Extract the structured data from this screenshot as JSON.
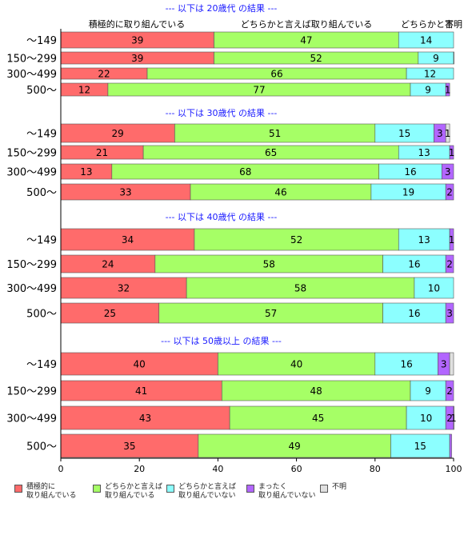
{
  "chart_data": {
    "type": "bar",
    "orientation": "horizontal",
    "stacked": true,
    "xlim": [
      0,
      100
    ],
    "x_ticks": [
      "0",
      "20",
      "40",
      "60",
      "80",
      "100"
    ],
    "colors": [
      "#ff6b6b",
      "#a6ff66",
      "#8cffff",
      "#b266ff",
      "#e0e0e0"
    ],
    "legend": {
      "placement": "bottom",
      "entries": [
        "積極的に\n取り組んでいる",
        "どちらかと言えば\n取り組んでいる",
        "どちらかと言えば\n取り組んでいない",
        "まったく\n取り組んでいない",
        "不明"
      ]
    },
    "header_labels": [
      "積極的に取り組んでいる",
      "どちらかと言えば取り組んでいる",
      "どちらかと言",
      "不明"
    ],
    "categories": [
      "～149",
      "150～299",
      "300～499",
      "500～"
    ],
    "panels": [
      {
        "title": "--- 以下は 20歳代 の結果 ---",
        "values": [
          [
            39,
            47,
            14,
            0,
            0
          ],
          [
            39,
            52,
            9,
            0.3,
            0
          ],
          [
            22,
            66,
            12,
            0,
            0
          ],
          [
            12,
            77,
            9,
            1,
            0
          ]
        ],
        "labels": [
          [
            "39",
            "47",
            "14",
            "",
            ""
          ],
          [
            "39",
            "52",
            "9",
            "",
            ""
          ],
          [
            "22",
            "66",
            "12",
            "",
            ""
          ],
          [
            "12",
            "77",
            "9",
            "1",
            ""
          ]
        ]
      },
      {
        "title": "--- 以下は 30歳代 の結果 ---",
        "values": [
          [
            29,
            51,
            15,
            3,
            1
          ],
          [
            21,
            65,
            13,
            1,
            0
          ],
          [
            13,
            68,
            16,
            3,
            0
          ],
          [
            33,
            46,
            19,
            2,
            0
          ]
        ],
        "labels": [
          [
            "29",
            "51",
            "15",
            "3",
            "1"
          ],
          [
            "21",
            "65",
            "13",
            "1",
            ""
          ],
          [
            "13",
            "68",
            "16",
            "3",
            ""
          ],
          [
            "33",
            "46",
            "19",
            "2",
            ""
          ]
        ]
      },
      {
        "title": "--- 以下は 40歳代 の結果 ---",
        "values": [
          [
            34,
            52,
            13,
            1,
            0
          ],
          [
            24,
            58,
            16,
            2,
            0
          ],
          [
            32,
            58,
            10,
            0,
            0
          ],
          [
            25,
            57,
            16,
            3,
            0
          ]
        ],
        "labels": [
          [
            "34",
            "52",
            "13",
            "1",
            ""
          ],
          [
            "24",
            "58",
            "16",
            "2",
            ""
          ],
          [
            "32",
            "58",
            "10",
            "",
            ""
          ],
          [
            "25",
            "57",
            "16",
            "3",
            ""
          ]
        ]
      },
      {
        "title": "--- 以下は 50歳以上 の結果 ---",
        "values": [
          [
            40,
            40,
            16,
            3,
            1
          ],
          [
            41,
            48,
            9,
            2,
            0
          ],
          [
            43,
            45,
            10,
            2,
            1
          ],
          [
            35,
            49,
            15,
            0.5,
            0
          ]
        ],
        "labels": [
          [
            "40",
            "40",
            "16",
            "3",
            ""
          ],
          [
            "41",
            "48",
            "9",
            "2",
            ""
          ],
          [
            "43",
            "45",
            "10",
            "2",
            "1"
          ],
          [
            "35",
            "49",
            "15",
            "",
            ""
          ]
        ]
      }
    ]
  }
}
